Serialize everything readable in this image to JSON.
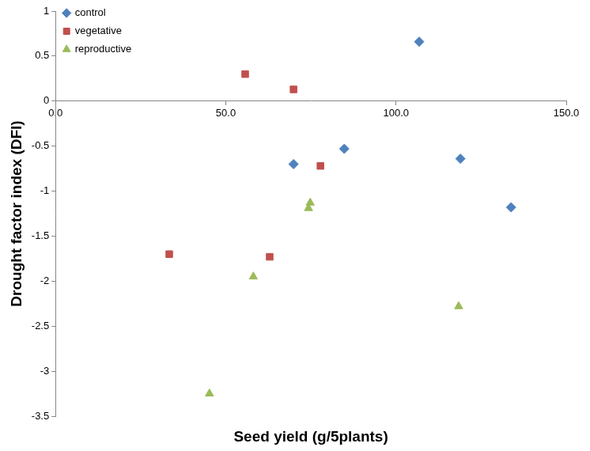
{
  "chart_data": {
    "type": "scatter",
    "x_label": "Seed yield (g/5plants)",
    "y_label": "Drought factor index (DFI)",
    "series": [
      {
        "name": "control",
        "color": "#4f81bd",
        "marker": "diamond",
        "x": [
          106.8,
          69.9,
          84.8,
          118.9,
          133.8
        ],
        "values": [
          0.66,
          -0.7,
          -0.53,
          -0.64,
          -1.18
        ]
      },
      {
        "name": "vegetative",
        "color": "#c0504d",
        "marker": "square",
        "x": [
          55.7,
          69.9,
          77.8,
          33.4,
          62.9
        ],
        "values": [
          0.3,
          0.13,
          -0.72,
          -1.7,
          -1.73
        ]
      },
      {
        "name": "reproductive",
        "color": "#9bbb59",
        "marker": "triangle",
        "x": [
          74.8,
          74.3,
          58.1,
          45.2,
          118.4
        ],
        "values": [
          -1.13,
          -1.19,
          -1.95,
          -3.25,
          -2.28
        ]
      }
    ],
    "xlim": [
      0,
      150
    ],
    "xticks": [
      {
        "value": 0,
        "label": "0.0"
      },
      {
        "value": 50,
        "label": "50.0"
      },
      {
        "value": 100,
        "label": "100.0"
      },
      {
        "value": 150,
        "label": "150.0"
      }
    ],
    "ylim": [
      -3.5,
      1
    ],
    "yticks": [
      -3.5,
      -3,
      -2.5,
      -2,
      -1.5,
      -1,
      -0.5,
      0,
      0.5,
      1
    ],
    "grid": false,
    "legend": "upper left"
  }
}
